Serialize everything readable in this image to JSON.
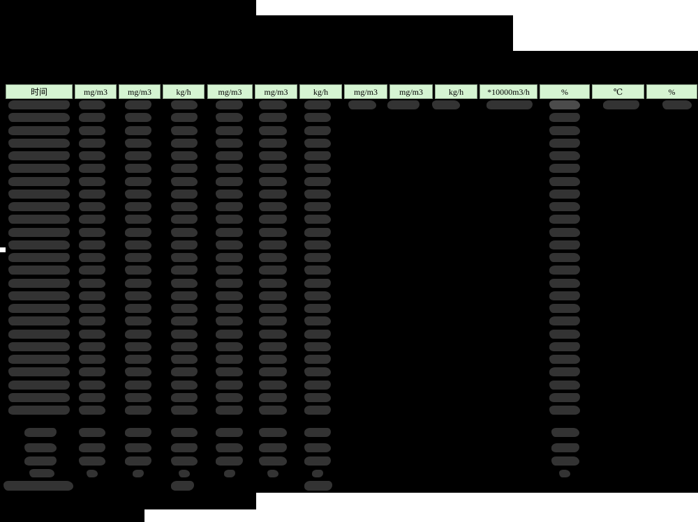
{
  "window": {
    "description_label": "redacted emissions monitoring report table",
    "background_color": "#000000"
  },
  "table": {
    "header": {
      "columns": [
        "时间",
        "mg/m3",
        "mg/m3",
        "kg/h",
        "mg/m3",
        "mg/m3",
        "kg/h",
        "mg/m3",
        "mg/m3",
        "kg/h",
        "*10000m3/h",
        "%",
        "℃",
        "%"
      ]
    },
    "body": {
      "main_row_count": 25,
      "main_row_redacted_column_indexes": [
        0,
        1,
        2,
        3,
        4,
        5,
        6,
        11
      ],
      "first_row_redacted_column_indexes": [
        0,
        1,
        2,
        3,
        4,
        5,
        6,
        7,
        8,
        9,
        10,
        11,
        12,
        13
      ],
      "summary_row_count": 4,
      "summary_redacted_column_indexes": [
        1,
        2,
        3,
        4,
        5,
        6,
        11
      ],
      "cumulative_row_count": 1,
      "cumulative_redacted_column_indexes": [
        3,
        6
      ]
    }
  },
  "colors": {
    "header_bg": "#d5f4d2",
    "header_text": "#000000",
    "blob": "#333333",
    "blob_light": "#4b4b4b",
    "mask": "#ffffff",
    "background": "#000000"
  }
}
